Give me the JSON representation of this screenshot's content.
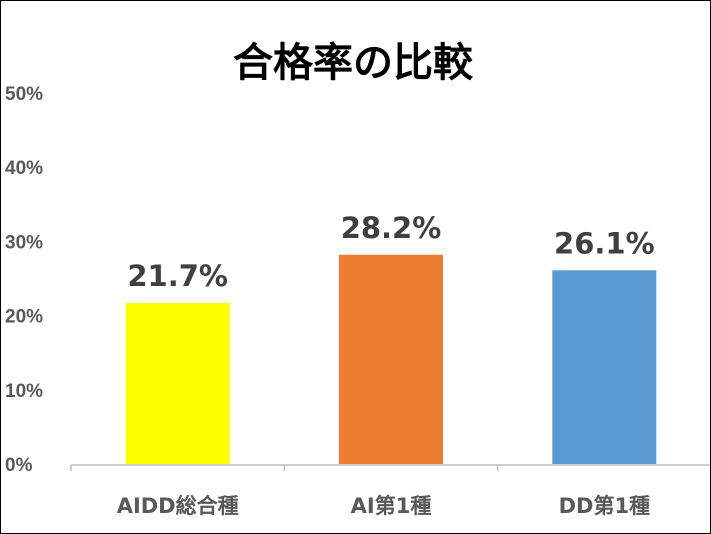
{
  "chart_data": {
    "type": "bar",
    "title": "合格率の比較",
    "xlabel": "",
    "ylabel": "",
    "categories": [
      "AIDD総合種",
      "AI第1種",
      "DD第1種"
    ],
    "values": [
      21.7,
      28.2,
      26.1
    ],
    "value_labels": [
      "21.7%",
      "28.2%",
      "26.1%"
    ],
    "bar_colors": [
      "#FFFF00",
      "#ED7D31",
      "#5B9BD5"
    ],
    "ylim": [
      0,
      50
    ],
    "y_ticks": [
      0,
      10,
      20,
      30,
      40,
      50
    ],
    "y_tick_labels": [
      "0%",
      "10%",
      "20%",
      "30%",
      "40%",
      "50%"
    ],
    "grid": false,
    "legend": "none"
  }
}
